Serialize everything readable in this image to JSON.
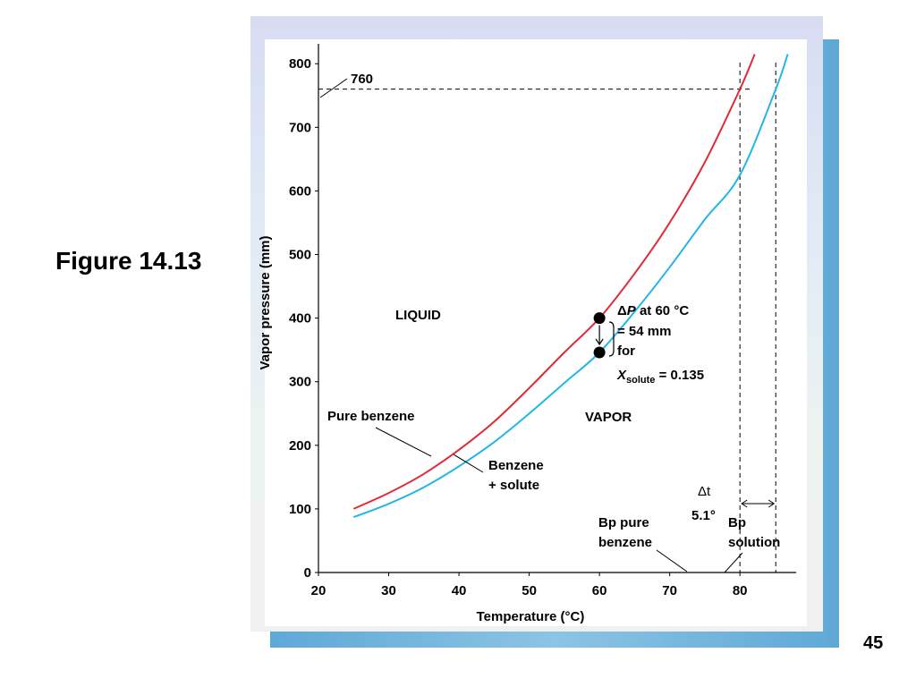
{
  "slide": {
    "figure_label": "Figure 14.13",
    "page_number": "45"
  },
  "chart_data": {
    "type": "line",
    "xlabel": "Temperature (°C)",
    "ylabel": "Vapor pressure (mm)",
    "xlim": [
      20,
      88
    ],
    "ylim": [
      0,
      820
    ],
    "x_ticks": [
      20,
      30,
      40,
      50,
      60,
      70,
      80
    ],
    "y_ticks": [
      0,
      100,
      200,
      300,
      400,
      500,
      600,
      700,
      800
    ],
    "series": [
      {
        "name": "Pure benzene",
        "color": "#e02a36",
        "x": [
          25,
          30,
          35,
          40,
          45,
          50,
          55,
          60,
          65,
          70,
          75,
          80,
          82.1
        ],
        "y": [
          100,
          125,
          155,
          193,
          237,
          290,
          346,
          400,
          470,
          550,
          645,
          760,
          815
        ]
      },
      {
        "name": "Benzene + solute",
        "color": "#22b6e6",
        "x": [
          25,
          30,
          35,
          40,
          45,
          50,
          55,
          60,
          65,
          70,
          75,
          80,
          85.1,
          86.8
        ],
        "y": [
          87,
          108,
          134,
          167,
          205,
          250,
          298,
          346,
          410,
          480,
          555,
          625,
          760,
          815
        ]
      }
    ],
    "reference_lines": {
      "pressure_mm": 760,
      "bp_pure": 80,
      "bp_solution": 85.1
    },
    "points": [
      {
        "x": 60,
        "y": 400
      },
      {
        "x": 60,
        "y": 346
      }
    ],
    "annotations": {
      "pressure_760": "760",
      "liquid": "LIQUID",
      "vapor": "VAPOR",
      "pure_benzene": "Pure benzene",
      "benzene_solute_line1": "Benzene",
      "benzene_solute_line2": "+ solute",
      "delta_p_line1": "ΔP at 60 °C",
      "delta_p_line2": "= 54 mm",
      "delta_p_line3": "for",
      "x_solute_var": "X",
      "x_solute_sub": "solute",
      "x_solute_val": " = 0.135",
      "delta_t": "Δt",
      "delta_t_value": "5.1°",
      "bp_pure_line1": "Bp pure",
      "bp_pure_line2": "benzene",
      "bp_solution_line1": "Bp",
      "bp_solution_line2": "solution"
    },
    "colors": {
      "pure": "#e02a36",
      "solution": "#22b6e6"
    }
  }
}
